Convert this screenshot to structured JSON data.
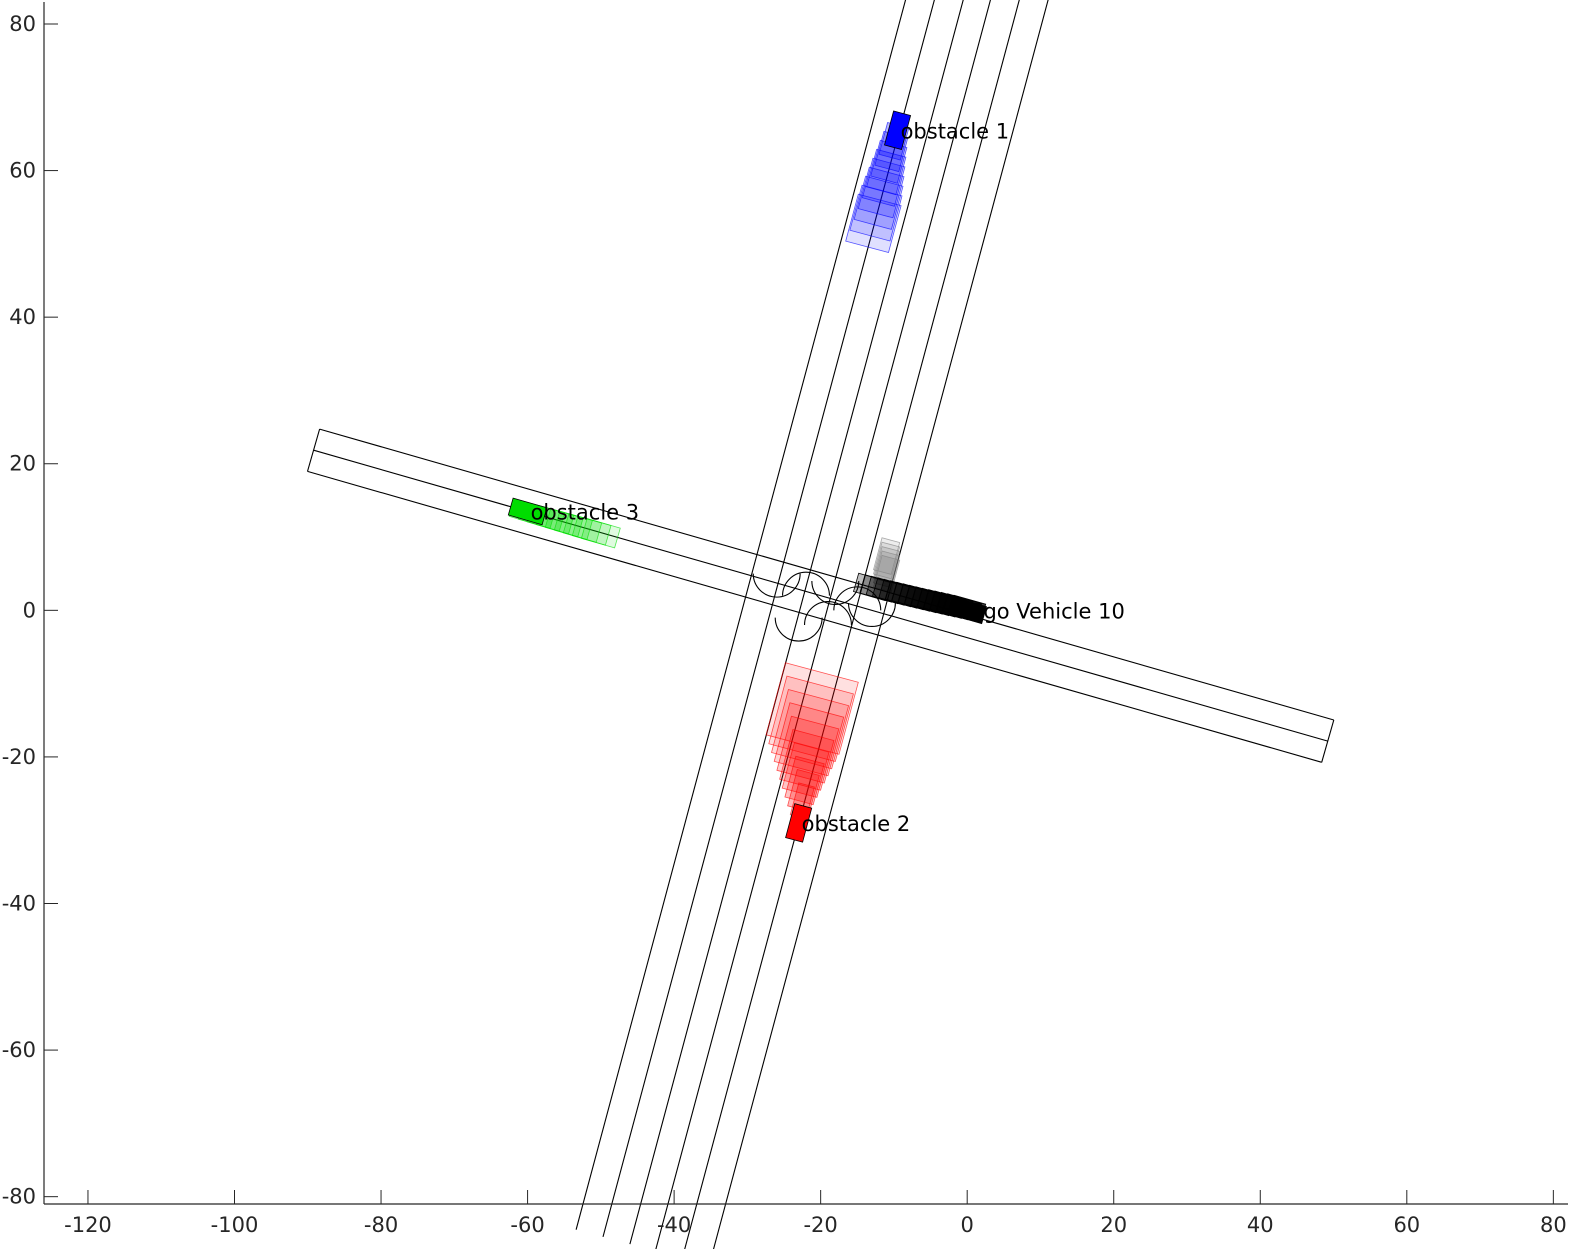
{
  "chart_data": {
    "type": "scatter",
    "xlim": [
      -126,
      82
    ],
    "ylim": [
      -81,
      83
    ],
    "xticks": [
      -120,
      -100,
      -80,
      -60,
      -40,
      -20,
      0,
      20,
      40,
      60,
      80
    ],
    "yticks": [
      -80,
      -60,
      -40,
      -20,
      0,
      20,
      40,
      60,
      80
    ],
    "grid": false,
    "colors": {
      "obstacle_1": "#0000ff",
      "obstacle_2": "#ff0000",
      "obstacle_3": "#00dd00",
      "ego": "#000000"
    },
    "vehicles": [
      {
        "label": "obstacle 1",
        "color": "#0000ff",
        "x": -9.5,
        "y": 65.5,
        "heading": 75
      },
      {
        "label": "obstacle 2",
        "color": "#ff0000",
        "x": -23,
        "y": -29,
        "heading": 75
      },
      {
        "label": "obstacle 3",
        "color": "#00dd00",
        "x": -60,
        "y": 13.5,
        "heading": -16
      },
      {
        "label": "Ego Vehicle 10",
        "color": "#000000",
        "x": 0,
        "y": 0,
        "heading": -16
      }
    ]
  }
}
